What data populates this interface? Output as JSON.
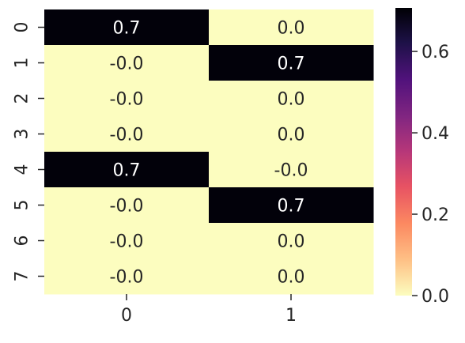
{
  "chart_data": {
    "type": "heatmap",
    "title": "",
    "xlabel": "",
    "ylabel": "",
    "x_categories": [
      "0",
      "1"
    ],
    "y_categories": [
      "0",
      "1",
      "2",
      "3",
      "4",
      "5",
      "6",
      "7"
    ],
    "values": [
      [
        0.7,
        0.0
      ],
      [
        -0.0,
        0.7
      ],
      [
        -0.0,
        0.0
      ],
      [
        -0.0,
        0.0
      ],
      [
        0.7,
        -0.0
      ],
      [
        -0.0,
        0.7
      ],
      [
        -0.0,
        0.0
      ],
      [
        -0.0,
        0.0
      ]
    ],
    "cell_labels": [
      [
        "0.7",
        "0.0"
      ],
      [
        "-0.0",
        "0.7"
      ],
      [
        "-0.0",
        "0.0"
      ],
      [
        "-0.0",
        "0.0"
      ],
      [
        "0.7",
        "-0.0"
      ],
      [
        "-0.0",
        "0.7"
      ],
      [
        "-0.0",
        "0.0"
      ],
      [
        "-0.0",
        "0.0"
      ]
    ],
    "colormap": "magma_r",
    "color_range": [
      0.0,
      0.707
    ],
    "colorbar": {
      "ticks": [
        0.0,
        0.2,
        0.4,
        0.6
      ],
      "tick_labels": [
        "0.0",
        "0.2",
        "0.4",
        "0.6"
      ],
      "placement": "right"
    },
    "colors": {
      "low": "#fcfdbf",
      "high": "#000004",
      "text_on_dark": "#ffffff",
      "text_on_light": "#262626"
    }
  }
}
